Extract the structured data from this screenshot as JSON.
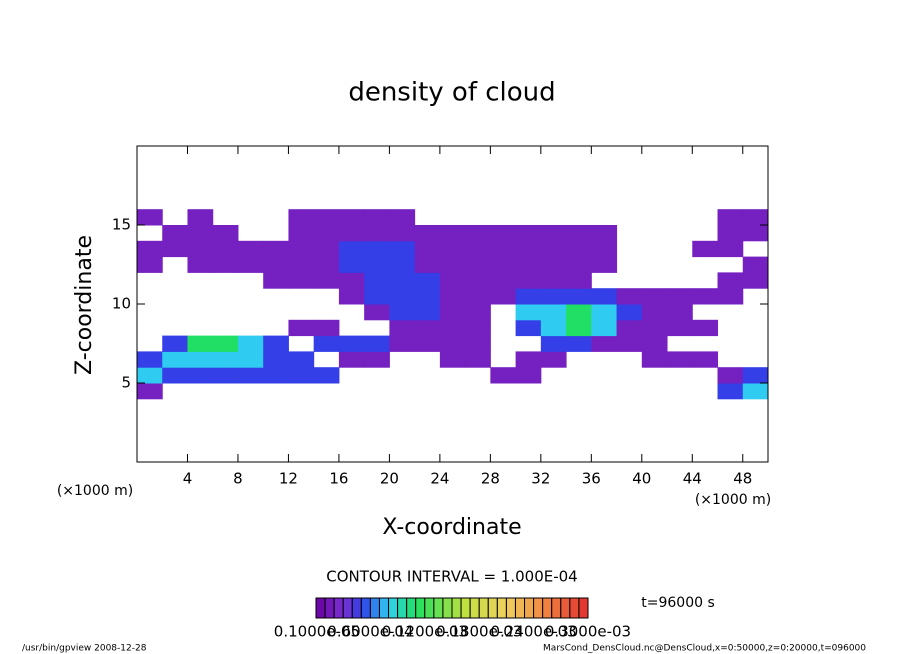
{
  "chart_data": {
    "type": "contour",
    "title": "density of cloud",
    "xlabel": "X-coordinate",
    "ylabel": "Z-coordinate",
    "x_unit_label": "(×1000 m)",
    "y_unit_label": "(×1000 m)",
    "xlim": [
      0,
      50
    ],
    "ylim": [
      0,
      20
    ],
    "xticks": [
      4,
      8,
      12,
      16,
      20,
      24,
      28,
      32,
      36,
      40,
      44,
      48
    ],
    "yticks": [
      5,
      10,
      15
    ],
    "x_bins": [
      0,
      2,
      4,
      6,
      8,
      10,
      12,
      14,
      16,
      18,
      20,
      22,
      24,
      26,
      28,
      30,
      32,
      34,
      36,
      38,
      40,
      42,
      44,
      46,
      48,
      50
    ],
    "z_bins": [
      4,
      5,
      6,
      7,
      8,
      9,
      10,
      11,
      12,
      13,
      14,
      15,
      16
    ],
    "values": [
      [
        2e-05,
        null,
        null,
        null,
        null,
        null,
        null,
        null,
        null,
        null,
        null,
        null,
        null,
        null,
        null,
        null,
        null,
        null,
        null,
        null,
        null,
        null,
        null,
        5e-05,
        8e-05
      ],
      [
        8e-05,
        5e-05,
        5e-05,
        5e-05,
        5e-05,
        5e-05,
        5e-05,
        5e-05,
        null,
        null,
        null,
        null,
        null,
        null,
        2e-05,
        2e-05,
        null,
        null,
        null,
        null,
        null,
        null,
        null,
        2e-05,
        5e-05
      ],
      [
        5e-05,
        8e-05,
        8e-05,
        8e-05,
        8e-05,
        5e-05,
        5e-05,
        null,
        2e-05,
        2e-05,
        null,
        null,
        2e-05,
        2e-05,
        null,
        2e-05,
        2e-05,
        null,
        null,
        null,
        2e-05,
        2e-05,
        2e-05,
        null,
        null
      ],
      [
        null,
        5e-05,
        0.00011,
        0.00011,
        8e-05,
        5e-05,
        null,
        5e-05,
        5e-05,
        5e-05,
        2e-05,
        2e-05,
        2e-05,
        2e-05,
        null,
        null,
        5e-05,
        5e-05,
        2e-05,
        2e-05,
        2e-05,
        null,
        null,
        null,
        null
      ],
      [
        null,
        null,
        null,
        null,
        null,
        null,
        2e-05,
        2e-05,
        null,
        null,
        2e-05,
        2e-05,
        2e-05,
        2e-05,
        null,
        5e-05,
        8e-05,
        0.00011,
        8e-05,
        2e-05,
        2e-05,
        2e-05,
        2e-05,
        null,
        null
      ],
      [
        null,
        null,
        null,
        null,
        null,
        null,
        null,
        null,
        null,
        2e-05,
        5e-05,
        5e-05,
        2e-05,
        2e-05,
        null,
        8e-05,
        8e-05,
        0.00011,
        8e-05,
        5e-05,
        2e-05,
        2e-05,
        null,
        null,
        null
      ],
      [
        null,
        null,
        null,
        null,
        null,
        null,
        null,
        null,
        2e-05,
        5e-05,
        5e-05,
        5e-05,
        2e-05,
        2e-05,
        2e-05,
        5e-05,
        5e-05,
        5e-05,
        5e-05,
        2e-05,
        2e-05,
        2e-05,
        2e-05,
        2e-05,
        null
      ],
      [
        null,
        null,
        null,
        null,
        null,
        2e-05,
        2e-05,
        2e-05,
        2e-05,
        5e-05,
        5e-05,
        5e-05,
        2e-05,
        2e-05,
        2e-05,
        2e-05,
        2e-05,
        2e-05,
        null,
        null,
        null,
        null,
        null,
        2e-05,
        2e-05
      ],
      [
        2e-05,
        null,
        2e-05,
        2e-05,
        2e-05,
        2e-05,
        2e-05,
        2e-05,
        5e-05,
        5e-05,
        5e-05,
        2e-05,
        2e-05,
        2e-05,
        2e-05,
        2e-05,
        2e-05,
        2e-05,
        2e-05,
        null,
        null,
        null,
        null,
        null,
        2e-05
      ],
      [
        2e-05,
        2e-05,
        2e-05,
        2e-05,
        2e-05,
        2e-05,
        2e-05,
        2e-05,
        5e-05,
        5e-05,
        5e-05,
        2e-05,
        2e-05,
        2e-05,
        2e-05,
        2e-05,
        2e-05,
        2e-05,
        2e-05,
        null,
        null,
        null,
        2e-05,
        2e-05,
        null
      ],
      [
        null,
        2e-05,
        2e-05,
        2e-05,
        null,
        null,
        2e-05,
        2e-05,
        2e-05,
        2e-05,
        2e-05,
        2e-05,
        2e-05,
        2e-05,
        2e-05,
        2e-05,
        2e-05,
        2e-05,
        2e-05,
        null,
        null,
        null,
        null,
        2e-05,
        2e-05
      ],
      [
        2e-05,
        null,
        2e-05,
        null,
        null,
        null,
        2e-05,
        2e-05,
        2e-05,
        2e-05,
        2e-05,
        null,
        null,
        null,
        null,
        null,
        null,
        null,
        null,
        null,
        null,
        null,
        null,
        2e-05,
        2e-05
      ]
    ],
    "contour_interval_label": "CONTOUR INTERVAL = 1.000E-04",
    "time_label": "t=96000 s",
    "colorbar": {
      "lim": [
        0,
        0.0003
      ],
      "ticks": [
        {
          "value": 1e-06,
          "label": "0.1000e-05"
        },
        {
          "value": 6e-05,
          "label": "0.6000e-04"
        },
        {
          "value": 0.00012,
          "label": "0.1200e-03"
        },
        {
          "value": 0.00018,
          "label": "0.1800e-03"
        },
        {
          "value": 0.00024,
          "label": "0.2400e-03"
        },
        {
          "value": 0.0003,
          "label": "0.3000e-03"
        }
      ]
    },
    "footer_left": "/usr/bin/gpview  2008-12-28",
    "footer_right": "MarsCond_DensCloud.nc@DensCloud,x=0:50000,z=0:20000,t=096000"
  }
}
